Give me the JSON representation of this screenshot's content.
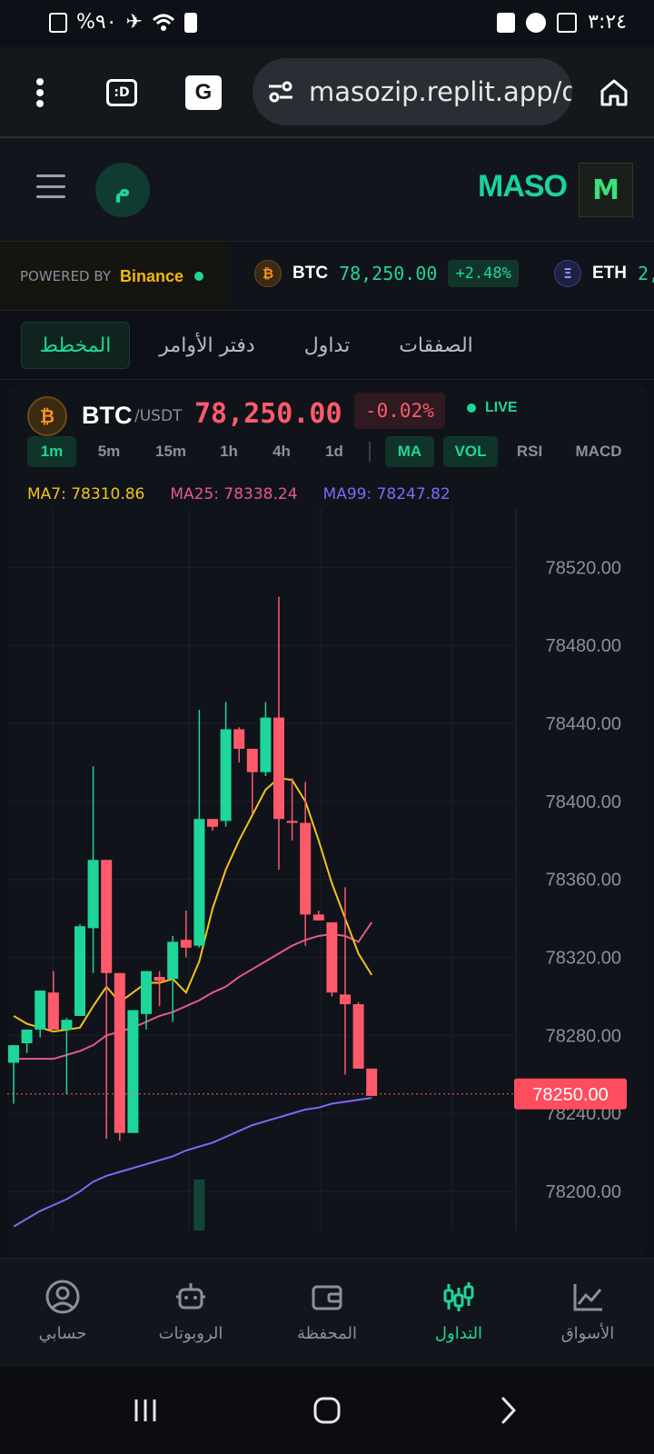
{
  "status_bar": {
    "battery": "%٩٠",
    "time": "٣:٢٤"
  },
  "browser": {
    "url": "masozip.replit.app/d"
  },
  "header": {
    "avatar_initial": "م",
    "brand": "MASO",
    "logo_letter": "M"
  },
  "ticker": {
    "powered_by": "POWERED BY",
    "exchange": "Binance",
    "items": [
      {
        "symbol": "BTC",
        "price": "78,250.00",
        "change": "+2.48%",
        "icon": "₿"
      },
      {
        "symbol": "ETH",
        "price": "2,",
        "icon": "Ξ"
      }
    ]
  },
  "tabs": [
    {
      "label": "المخطط",
      "active": true
    },
    {
      "label": "دفتر الأوامر",
      "active": false
    },
    {
      "label": "تداول",
      "active": false
    },
    {
      "label": "الصفقات",
      "active": false
    }
  ],
  "panel": {
    "coin_icon": "₿",
    "symbol": "BTC",
    "quote": "/USDT",
    "price": "78,250.00",
    "change": "-0.02%",
    "live": "LIVE",
    "timeframes": [
      "1m",
      "5m",
      "15m",
      "1h",
      "4h",
      "1d"
    ],
    "active_timeframe": "1m",
    "indicators": [
      "MA",
      "VOL",
      "RSI",
      "MACD"
    ],
    "active_indicators": [
      "MA",
      "VOL"
    ],
    "ma_legend": {
      "ma7": "MA7: 78310.86",
      "ma25": "MA25: 78338.24",
      "ma99": "MA99: 78247.82"
    }
  },
  "chart_data": {
    "type": "candlestick",
    "y_axis_labels": [
      "78520.00",
      "78480.00",
      "78440.00",
      "78400.00",
      "78360.00",
      "78320.00",
      "78280.00",
      "78240.00",
      "78200.00"
    ],
    "ylim": [
      78180,
      78550
    ],
    "current_price_label": "78250.00",
    "current_price": 78250,
    "colors": {
      "up": "#1ed69a",
      "down": "#ff5a6a",
      "ma7": "#f0c419",
      "ma25": "#e8588f",
      "ma99": "#7b6cf6"
    },
    "candles": [
      {
        "o": 78266,
        "h": 78273,
        "l": 78245,
        "c": 78275
      },
      {
        "o": 78276,
        "h": 78283,
        "l": 78271,
        "c": 78283
      },
      {
        "o": 78283,
        "h": 78303,
        "l": 78279,
        "c": 78303
      },
      {
        "o": 78302,
        "h": 78313,
        "l": 78283,
        "c": 78283
      },
      {
        "o": 78283,
        "h": 78289,
        "l": 78250,
        "c": 78288
      },
      {
        "o": 78290,
        "h": 78337,
        "l": 78290,
        "c": 78336
      },
      {
        "o": 78335,
        "h": 78418,
        "l": 78312,
        "c": 78370
      },
      {
        "o": 78370,
        "h": 78370,
        "l": 78227,
        "c": 78312
      },
      {
        "o": 78312,
        "h": 78312,
        "l": 78226,
        "c": 78230
      },
      {
        "o": 78230,
        "h": 78293,
        "l": 78230,
        "c": 78293
      },
      {
        "o": 78291,
        "h": 78313,
        "l": 78283,
        "c": 78313
      },
      {
        "o": 78310,
        "h": 78313,
        "l": 78295,
        "c": 78308
      },
      {
        "o": 78309,
        "h": 78331,
        "l": 78287,
        "c": 78328
      },
      {
        "o": 78329,
        "h": 78344,
        "l": 78320,
        "c": 78325
      },
      {
        "o": 78326,
        "h": 78447,
        "l": 78325,
        "c": 78391
      },
      {
        "o": 78391,
        "h": 78391,
        "l": 78385,
        "c": 78387
      },
      {
        "o": 78390,
        "h": 78451,
        "l": 78387,
        "c": 78437
      },
      {
        "o": 78437,
        "h": 78438,
        "l": 78420,
        "c": 78427
      },
      {
        "o": 78427,
        "h": 78427,
        "l": 78394,
        "c": 78415
      },
      {
        "o": 78415,
        "h": 78451,
        "l": 78413,
        "c": 78443
      },
      {
        "o": 78443,
        "h": 78505,
        "l": 78365,
        "c": 78391
      },
      {
        "o": 78390,
        "h": 78412,
        "l": 78380,
        "c": 78389
      },
      {
        "o": 78389,
        "h": 78410,
        "l": 78326,
        "c": 78342
      },
      {
        "o": 78342,
        "h": 78344,
        "l": 78339,
        "c": 78339
      },
      {
        "o": 78338,
        "h": 78338,
        "l": 78300,
        "c": 78302
      },
      {
        "o": 78301,
        "h": 78356,
        "l": 78260,
        "c": 78296
      },
      {
        "o": 78296,
        "h": 78297,
        "l": 78263,
        "c": 78263
      },
      {
        "o": 78263,
        "h": 78263,
        "l": 78249,
        "c": 78249
      }
    ],
    "ma7": [
      78290,
      78286,
      78284,
      78282,
      78283,
      78284,
      78295,
      78305,
      78297,
      78302,
      78307,
      78307,
      78309,
      78302,
      78318,
      78345,
      78365,
      78380,
      78393,
      78406,
      78412,
      78411,
      78400,
      78380,
      78358,
      78340,
      78322,
      78311
    ],
    "ma25": [
      78268,
      78268,
      78268,
      78268,
      78270,
      78272,
      78275,
      78280,
      78282,
      78284,
      78287,
      78290,
      78292,
      78295,
      78298,
      78302,
      78305,
      78310,
      78314,
      78318,
      78322,
      78326,
      78329,
      78331,
      78332,
      78331,
      78328,
      78338
    ],
    "ma99": [
      78182,
      78186,
      78190,
      78193,
      78196,
      78200,
      78205,
      78208,
      78210,
      78212,
      78214,
      78216,
      78218,
      78221,
      78223,
      78225,
      78228,
      78231,
      78234,
      78236,
      78238,
      78240,
      78242,
      78243,
      78245,
      78246,
      78247,
      78248
    ],
    "volume_bar": {
      "index": 14,
      "color": "#1ed69a"
    }
  },
  "bottom_nav": [
    {
      "label": "حسابي",
      "icon": "user-circle-icon",
      "active": false
    },
    {
      "label": "الروبوتات",
      "icon": "robot-icon",
      "active": false
    },
    {
      "label": "المحفظة",
      "icon": "wallet-icon",
      "active": false
    },
    {
      "label": "التداول",
      "icon": "candles-icon",
      "active": true
    },
    {
      "label": "الأسواق",
      "icon": "chart-line-icon",
      "active": false
    }
  ]
}
